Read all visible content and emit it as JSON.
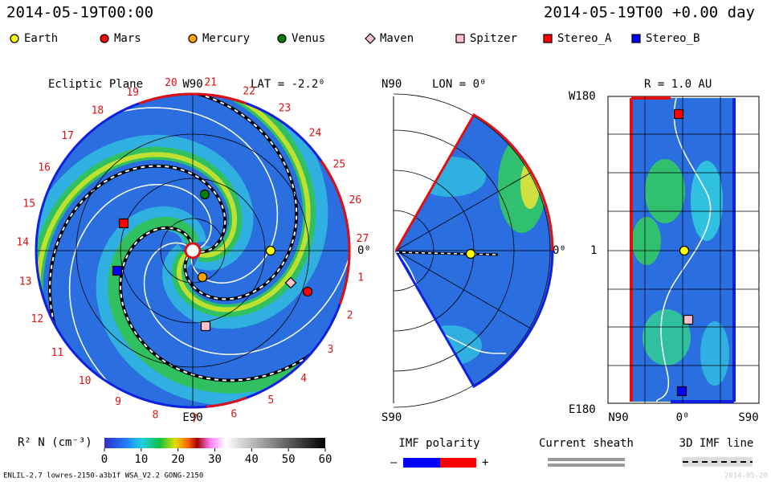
{
  "header": {
    "left": "2014-05-19T00:00",
    "right": "2014-05-19T00 +0.00 day"
  },
  "legend": [
    {
      "name": "Earth",
      "color": "#ffff00",
      "shape": "circle"
    },
    {
      "name": "Mars",
      "color": "#ff0000",
      "shape": "circle"
    },
    {
      "name": "Mercury",
      "color": "#ffa500",
      "shape": "circle"
    },
    {
      "name": "Venus",
      "color": "#008000",
      "shape": "circle"
    },
    {
      "name": "Maven",
      "color": "#ffc0cb",
      "shape": "diamond"
    },
    {
      "name": "Spitzer",
      "color": "#ffc0cb",
      "shape": "square"
    },
    {
      "name": "Stereo_A",
      "color": "#ff0000",
      "shape": "square"
    },
    {
      "name": "Stereo_B",
      "color": "#0000ff",
      "shape": "square"
    }
  ],
  "ecliptic": {
    "title": "Ecliptic Plane",
    "top": "W90",
    "lat": "LAT = -2.2⁰",
    "bottom": "E90",
    "right": "0⁰",
    "carrington": [
      "1",
      "2",
      "3",
      "4",
      "5",
      "6",
      "7",
      "8",
      "9",
      "10",
      "11",
      "12",
      "13",
      "14",
      "15",
      "16",
      "17",
      "18",
      "19",
      "20",
      "21",
      "22",
      "23",
      "24",
      "25",
      "26",
      "27"
    ]
  },
  "meridional": {
    "top": "N90",
    "lon": "LON = 0⁰",
    "bottom": "S90",
    "right": "0⁰"
  },
  "radial": {
    "title": "R = 1.0 AU",
    "top": "W180",
    "middle": "1",
    "bottom": "E180",
    "bottom_labels": [
      "N90",
      "0⁰",
      "S90"
    ]
  },
  "colorbar": {
    "label": "R² N (cm⁻³)",
    "range": [
      0,
      60
    ],
    "ticks": [
      0,
      10,
      20,
      30,
      40,
      50,
      60
    ]
  },
  "keys": {
    "imf": "IMF polarity",
    "minus": "–",
    "plus": "+",
    "sheath": "Current sheath",
    "line": "3D IMF line"
  },
  "footer": {
    "left": "ENLIL-2.7 lowres-2150-a3b1f WSA_V2.2 GONG-2150",
    "right": "2014-05-20"
  }
}
